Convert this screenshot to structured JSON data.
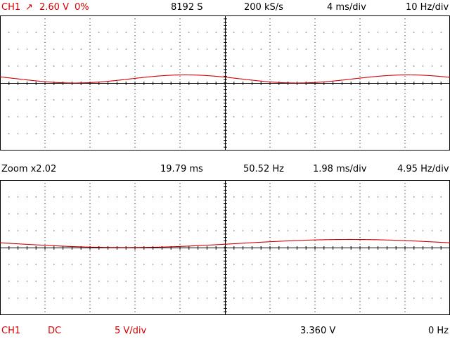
{
  "top_bar": {
    "channel": "CH1",
    "trigger_icon": "trigger-rising-edge-icon",
    "trigger_glyph": "↗",
    "trigger_level": "2.60 V",
    "trigger_pos": "0%",
    "samples": "8192 S",
    "sample_rate": "200 kS/s",
    "time_div": "4 ms/div",
    "freq_div": "10 Hz/div"
  },
  "zoom_bar": {
    "zoom": "Zoom x2.02",
    "period": "19.79 ms",
    "frequency": "50.52 Hz",
    "time_div": "1.98 ms/div",
    "freq_div": "4.95 Hz/div"
  },
  "bottom_bar": {
    "channel": "CH1",
    "coupling": "DC",
    "volt_div": "5 V/div",
    "voltage": "3.360 V",
    "freq": "0 Hz"
  },
  "colors": {
    "channel": "#d40000",
    "grid": "#000000",
    "background": "#ffffff"
  },
  "waveform": {
    "type": "sine",
    "frequency_hz": 50.52,
    "offset_v": 1.2,
    "amplitude_v": 1.2,
    "volts_per_div": 5,
    "main_ms_per_div": 4,
    "zoom_ms_per_div": 1.98,
    "main_phase_deg": 150,
    "zoom_phase_deg": 170
  }
}
